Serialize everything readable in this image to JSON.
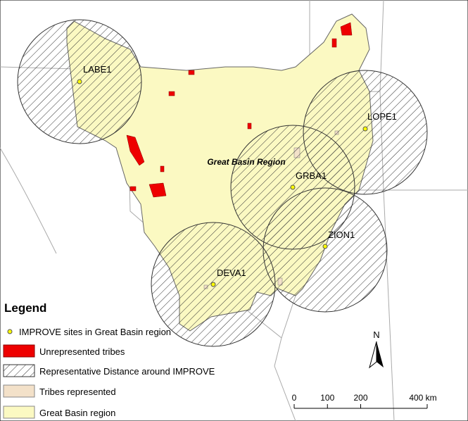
{
  "map": {
    "region_label": "Great Basin Region",
    "sites": [
      {
        "name": "LABE1"
      },
      {
        "name": "LOPE1"
      },
      {
        "name": "GRBA1"
      },
      {
        "name": "ZION1"
      },
      {
        "name": "DEVA1"
      }
    ],
    "legend": {
      "title": "Legend",
      "items": [
        "IMPROVE sites in Great Basin region",
        "Unrepresented tribes",
        "Representative Distance around IMPROVE",
        "Tribes represented",
        "Great Basin region"
      ]
    },
    "north": "N",
    "scale": {
      "ticks": [
        0,
        100,
        200,
        {
          "value": 400,
          "label": "400 km"
        }
      ]
    }
  }
}
